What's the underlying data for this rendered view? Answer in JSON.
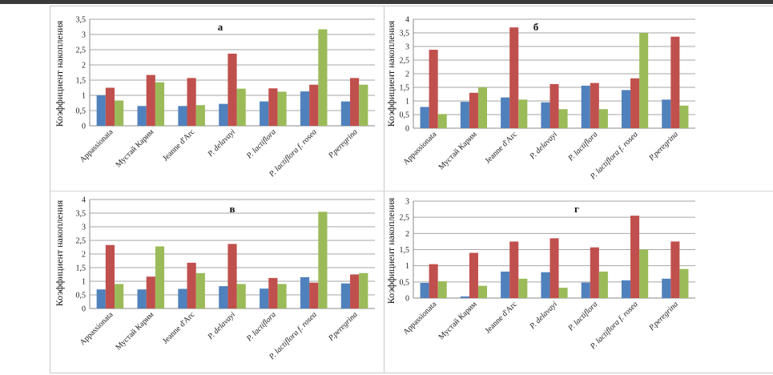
{
  "chart_data": [
    {
      "type": "bar",
      "title": "а",
      "ylabel": "Коэффициент накопления",
      "ylim": [
        0,
        3.5
      ],
      "yticks": [
        "0",
        "0,5",
        "1",
        "1,5",
        "2",
        "2,5",
        "3",
        "3,5"
      ],
      "categories": [
        "Appassionata",
        "Мустай Карим",
        "Jeanne d'Arc",
        "P. delavayi",
        "P. lactiflora",
        "P. lactiflora f. rosea",
        "P.peregrina"
      ],
      "colors": [
        "#4f81bd",
        "#c0504d",
        "#9bbb59"
      ],
      "series": [
        {
          "values": [
            1.0,
            0.65,
            0.65,
            0.72,
            0.8,
            1.13,
            0.8
          ]
        },
        {
          "values": [
            1.25,
            1.67,
            1.57,
            2.37,
            1.23,
            1.35,
            1.57
          ]
        },
        {
          "values": [
            0.83,
            1.43,
            0.68,
            1.22,
            1.12,
            3.17,
            1.35
          ]
        }
      ]
    },
    {
      "type": "bar",
      "title": "б",
      "ylabel": "Коэффициент накопления",
      "ylim": [
        0,
        4
      ],
      "yticks": [
        "0",
        "0,5",
        "1",
        "1,5",
        "2",
        "2,5",
        "3",
        "3,5",
        "4"
      ],
      "categories": [
        "Appassionata",
        "Мустай Карим",
        "Jeanne d'Arc",
        "P. delavayi",
        "P. lactiflora",
        "P. lactiflora f. rosea",
        "P.peregrina"
      ],
      "colors": [
        "#4f81bd",
        "#c0504d",
        "#9bbb59"
      ],
      "series": [
        {
          "values": [
            0.78,
            0.97,
            1.13,
            0.95,
            1.56,
            1.4,
            1.05
          ]
        },
        {
          "values": [
            2.88,
            1.3,
            3.7,
            1.62,
            1.66,
            1.83,
            3.36
          ]
        },
        {
          "values": [
            0.52,
            1.5,
            1.05,
            0.7,
            0.7,
            3.5,
            0.83
          ]
        }
      ]
    },
    {
      "type": "bar",
      "title": "в",
      "ylabel": "Коэффициент накопления",
      "ylim": [
        0,
        4
      ],
      "yticks": [
        "0",
        "0,5",
        "1",
        "1,5",
        "2",
        "2,5",
        "3",
        "3,5",
        "4"
      ],
      "categories": [
        "Appassionata",
        "Мустай Карим",
        "Jeanne d'Arc",
        "P. delavayi",
        "P. lactiflora",
        "P. lactiflora f. rosea",
        "P.peregrina"
      ],
      "colors": [
        "#4f81bd",
        "#c0504d",
        "#9bbb59"
      ],
      "series": [
        {
          "values": [
            0.7,
            0.7,
            0.72,
            0.82,
            0.73,
            1.15,
            0.92
          ]
        },
        {
          "values": [
            2.33,
            1.17,
            1.68,
            2.37,
            1.12,
            0.95,
            1.25
          ]
        },
        {
          "values": [
            0.9,
            2.28,
            1.3,
            0.9,
            0.9,
            3.55,
            1.3
          ]
        }
      ]
    },
    {
      "type": "bar",
      "title": "г",
      "ylabel": "Коэффициент накопления",
      "ylim": [
        0,
        3
      ],
      "yticks": [
        "0",
        "0,5",
        "1",
        "1,5",
        "2",
        "2,5",
        "3"
      ],
      "categories": [
        "Appassionata",
        "Мустай Карим",
        "Jeanne d'Arc",
        "P. delavayi",
        "P. lactiflora",
        "P. lactiflora f. rosea",
        "P.peregrina"
      ],
      "colors": [
        "#4f81bd",
        "#c0504d",
        "#9bbb59"
      ],
      "series": [
        {
          "values": [
            0.47,
            0.05,
            0.82,
            0.8,
            0.48,
            0.55,
            0.6
          ]
        },
        {
          "values": [
            1.05,
            1.4,
            1.75,
            1.85,
            1.57,
            2.55,
            1.75
          ]
        },
        {
          "values": [
            0.52,
            0.38,
            0.6,
            0.32,
            0.82,
            1.5,
            0.9
          ]
        }
      ]
    }
  ]
}
